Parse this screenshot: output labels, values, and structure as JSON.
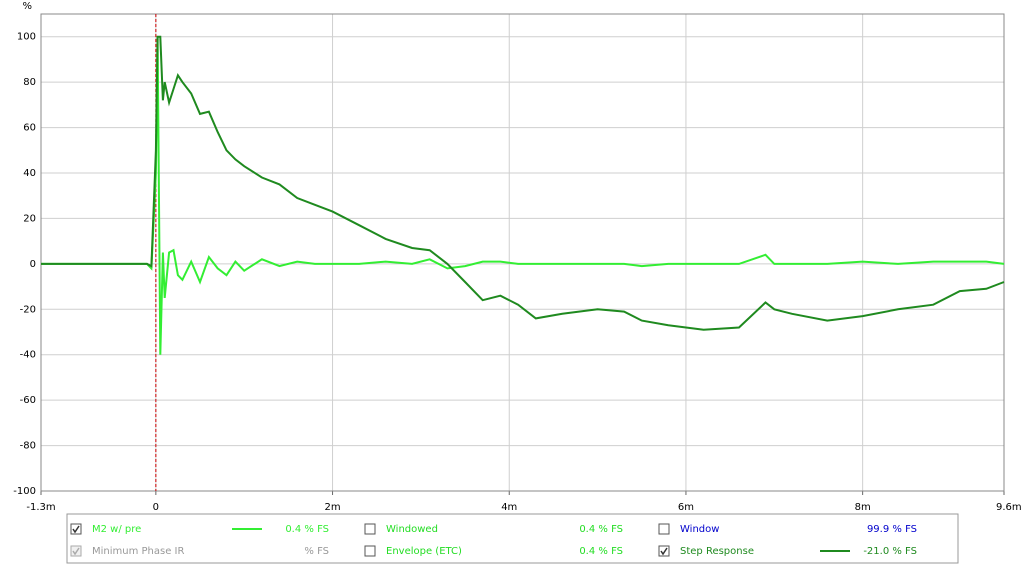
{
  "chart_data": {
    "type": "line",
    "y_label": "%",
    "x": [
      -1.3,
      -0.1,
      -0.05,
      0,
      0.02,
      0.05,
      0.08,
      0.1,
      0.15,
      0.2,
      0.25,
      0.3,
      0.4,
      0.5,
      0.6,
      0.7,
      0.8,
      0.9,
      1.0,
      1.2,
      1.4,
      1.6,
      1.8,
      2.0,
      2.3,
      2.6,
      2.9,
      3.1,
      3.3,
      3.5,
      3.7,
      3.9,
      4.1,
      4.3,
      4.6,
      5.0,
      5.3,
      5.5,
      5.8,
      6.2,
      6.6,
      6.9,
      7.0,
      7.2,
      7.6,
      8.0,
      8.4,
      8.8,
      9.1,
      9.4,
      9.6
    ],
    "series": [
      {
        "name": "M2 w/ pre",
        "color": "#33ee33",
        "readout": "0.4 % FS",
        "checked": true,
        "values": [
          0,
          0,
          -2,
          40,
          100,
          -40,
          5,
          -15,
          5,
          6,
          -5,
          -7,
          1,
          -8,
          3,
          -2,
          -5,
          1,
          -3,
          2,
          -1,
          1,
          0,
          0,
          0,
          1,
          0,
          2,
          -2,
          -1,
          1,
          1,
          0,
          0,
          0,
          0,
          0,
          -1,
          0,
          0,
          0,
          4,
          0,
          0,
          0,
          1,
          0,
          1,
          1,
          1,
          0
        ]
      },
      {
        "name": "Step Response",
        "color": "#1f8a1f",
        "readout": "-21.0 % FS",
        "checked": true,
        "values": [
          0,
          0,
          -1,
          50,
          100,
          100,
          72,
          80,
          71,
          77,
          83,
          80,
          75,
          66,
          67,
          58,
          50,
          46,
          43,
          38,
          35,
          29,
          26,
          23,
          17,
          11,
          7,
          6,
          0,
          -8,
          -16,
          -14,
          -18,
          -24,
          -22,
          -20,
          -21,
          -25,
          -27,
          -29,
          -28,
          -17,
          -20,
          -22,
          -25,
          -23,
          -20,
          -18,
          -12,
          -11,
          -8
        ]
      }
    ],
    "other_traces": [
      {
        "name": "Windowed",
        "readout": "0.4 % FS",
        "checked": false,
        "color": "#22dd22"
      },
      {
        "name": "Window",
        "readout": "99.9 % FS",
        "checked": false,
        "color": "#0000cc"
      },
      {
        "name": "Minimum Phase IR",
        "readout": "% FS",
        "checked": true,
        "enabled": false,
        "color": "#999999"
      },
      {
        "name": "Envelope (ETC)",
        "readout": "0.4 % FS",
        "checked": false,
        "color": "#22dd22"
      }
    ],
    "xlim": [
      -1.3,
      9.6
    ],
    "xticks": [
      {
        "value": -1.3,
        "label": "-1.3m"
      },
      0,
      {
        "value": 2,
        "label": "2m"
      },
      {
        "value": 4,
        "label": "4m"
      },
      {
        "value": 6,
        "label": "6m"
      },
      {
        "value": 8,
        "label": "8m"
      },
      {
        "value": 9.6,
        "label": "9.6m s"
      }
    ],
    "ylim": [
      -100,
      110
    ],
    "yticks": [
      -100,
      -80,
      -60,
      -40,
      -20,
      0,
      20,
      40,
      60,
      80,
      100
    ],
    "grid": true
  }
}
